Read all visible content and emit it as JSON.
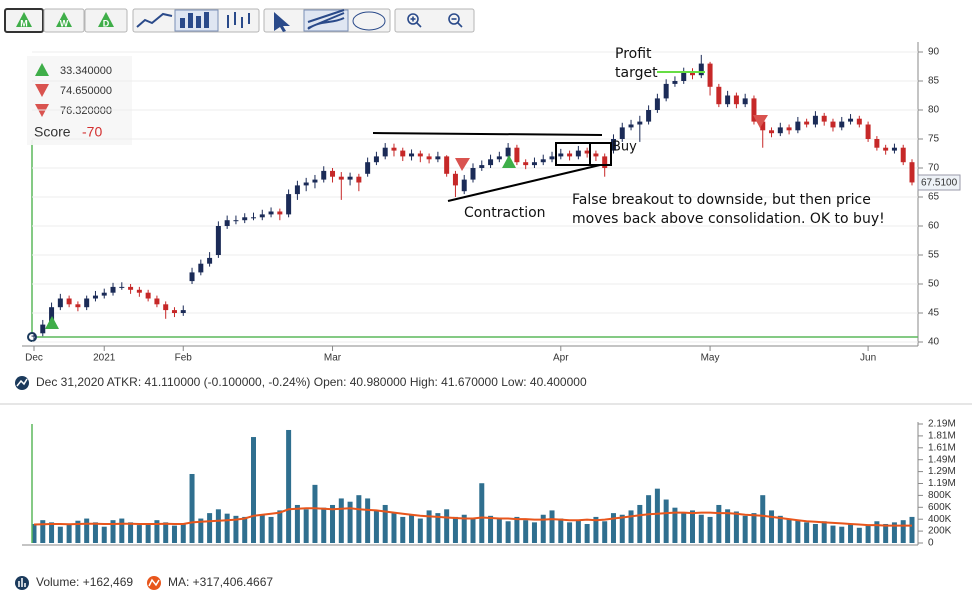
{
  "toolbar": {
    "buttons": [
      "M",
      "W",
      "D"
    ]
  },
  "info_box": {
    "values": [
      "33.340000",
      "74.650000",
      "76.320000"
    ],
    "score_label": "Score",
    "score": "-70"
  },
  "chart_data": [
    {
      "type": "candlestick",
      "ohlc_legend": "Dec 31,2020 ATKR: 41.110000 (-0.100000, -0.24%) Open: 40.980000 High: 41.670000 Low: 40.400000",
      "categories": [
        "Dec",
        null,
        null,
        null,
        null,
        null,
        null,
        null,
        "2021",
        null,
        null,
        null,
        null,
        null,
        null,
        null,
        null,
        "Feb",
        null,
        null,
        null,
        null,
        null,
        null,
        null,
        null,
        null,
        null,
        null,
        null,
        null,
        null,
        null,
        null,
        "Mar",
        null,
        null,
        null,
        null,
        null,
        null,
        null,
        null,
        null,
        null,
        null,
        null,
        null,
        null,
        null,
        null,
        null,
        null,
        null,
        null,
        null,
        null,
        null,
        null,
        null,
        "Apr",
        null,
        null,
        null,
        null,
        null,
        null,
        null,
        null,
        null,
        null,
        null,
        null,
        null,
        null,
        null,
        null,
        "May",
        null,
        null,
        null,
        null,
        null,
        null,
        null,
        null,
        null,
        null,
        null,
        null,
        null,
        null,
        null,
        null,
        null,
        "Jun",
        null,
        null,
        null,
        null,
        null
      ],
      "open": [
        40.98,
        41.5,
        43,
        46,
        47.5,
        46.5,
        46,
        47.5,
        48,
        48.5,
        49.5,
        49.5,
        49,
        48.5,
        47.5,
        46.5,
        45.5,
        45,
        50.5,
        52,
        53.5,
        55,
        60,
        61,
        61,
        61.5,
        61.5,
        62,
        62.5,
        62,
        65.5,
        67,
        67.5,
        68,
        69.5,
        68.5,
        68,
        68.5,
        69,
        71,
        72,
        73.5,
        73,
        72,
        72.5,
        72,
        71.5,
        72,
        69,
        66,
        68,
        70,
        70.5,
        71.5,
        72,
        73.5,
        71,
        70.5,
        71,
        71.5,
        72,
        72.5,
        72,
        73,
        72.5,
        72,
        73,
        75,
        77,
        77.5,
        78,
        80,
        82,
        84.5,
        85,
        86.5,
        86,
        88,
        84,
        81,
        82.5,
        81,
        82,
        78,
        76.5,
        76,
        77,
        76.5,
        78,
        77.5,
        79,
        78,
        77,
        78,
        78.5,
        77.5,
        75,
        73.5,
        73,
        73.5,
        71
      ],
      "high": [
        41.67,
        43.8,
        46.8,
        48.3,
        48,
        47,
        48,
        48.8,
        49.2,
        50.2,
        50.3,
        50,
        49.5,
        49,
        48,
        47,
        46,
        46.3,
        52.8,
        54.2,
        55.5,
        60.8,
        61.8,
        61.8,
        62.2,
        62.3,
        62.8,
        63.2,
        63,
        66.3,
        67.8,
        68.3,
        68.8,
        70.3,
        70,
        69.3,
        69.2,
        69,
        71.8,
        72.8,
        74.3,
        74.2,
        73.5,
        73.2,
        73,
        72.5,
        72.8,
        72.2,
        69.5,
        68.8,
        70.8,
        71.3,
        72.3,
        72.8,
        74.3,
        74,
        71.5,
        71.8,
        72.3,
        72.8,
        73.3,
        73,
        73.8,
        73.5,
        73,
        72.5,
        75.8,
        77.8,
        78.3,
        79,
        80.8,
        82.8,
        85.3,
        85.8,
        87.3,
        87.2,
        89.5,
        88.3,
        84.5,
        83.3,
        83,
        82.8,
        82.5,
        78.5,
        77,
        77.8,
        77.5,
        78.8,
        78.5,
        79.8,
        79.5,
        78.5,
        78.8,
        79.3,
        79,
        78,
        75.5,
        74,
        74.2,
        74,
        71.5
      ],
      "low": [
        40.4,
        41,
        42.5,
        45.5,
        46,
        45.3,
        45.5,
        47,
        47.5,
        48,
        49,
        48.3,
        47.8,
        47,
        46,
        44,
        44.3,
        44.5,
        50,
        51.5,
        53,
        54.5,
        59.5,
        60.3,
        60.5,
        61,
        61,
        61.5,
        61,
        61.5,
        64.5,
        66,
        66.5,
        67.5,
        67.5,
        64.5,
        67,
        66,
        68.5,
        70.5,
        71.5,
        72,
        71.2,
        71.3,
        71,
        70.8,
        71,
        68.5,
        65,
        65.5,
        67.5,
        69.5,
        70,
        71,
        71.5,
        70.5,
        69.8,
        70,
        70.5,
        71,
        71.5,
        71.3,
        71.5,
        71.8,
        71.2,
        68.5,
        72.5,
        74.5,
        76.5,
        74.5,
        77.5,
        79.5,
        81.5,
        84,
        84.5,
        85.3,
        85.5,
        82.5,
        80.5,
        80.5,
        80.3,
        80.5,
        77.5,
        73.5,
        75.3,
        75.5,
        75.8,
        76,
        77,
        77,
        77.3,
        76.3,
        76.5,
        77.5,
        77,
        74.5,
        73,
        72.3,
        72.5,
        70.5,
        67
      ],
      "close": [
        41.11,
        43,
        46,
        47.5,
        46.5,
        46,
        47.5,
        48,
        48.5,
        49.5,
        49.5,
        49,
        48.5,
        47.5,
        46.5,
        45.5,
        45,
        45.5,
        52,
        53.5,
        54.5,
        60,
        61,
        61,
        61.5,
        61.5,
        62,
        62.5,
        62,
        65.5,
        67,
        67.5,
        68,
        69.5,
        68.5,
        68,
        68.5,
        67.5,
        71,
        72,
        73.5,
        73,
        72,
        72.5,
        72,
        71.5,
        72,
        69,
        67,
        68,
        70,
        70.5,
        71.5,
        72,
        73.5,
        71,
        70.5,
        71,
        71.5,
        72,
        72.5,
        72,
        73,
        72.5,
        72,
        70,
        75,
        77,
        77.5,
        78,
        80,
        82,
        84.5,
        85,
        86.5,
        86,
        88,
        84,
        81,
        82.5,
        81,
        82,
        78,
        76.5,
        76,
        77,
        76.5,
        78,
        77.5,
        79,
        78,
        77,
        78,
        78.5,
        77.5,
        75,
        73.5,
        73,
        73.5,
        71,
        67.51
      ],
      "up_color": "#1b2b57",
      "down_color": "#c62828",
      "last_label": "67.5100",
      "ylim": [
        40,
        90
      ],
      "yticks": [
        40,
        45,
        50,
        55,
        60,
        65,
        70,
        75,
        80,
        85,
        90
      ],
      "grid": true,
      "annotations": [
        "Profit",
        "target",
        "Buy",
        "Contraction",
        "False breakout to downside, but then price",
        "moves back above consolidation. OK to buy!"
      ]
    },
    {
      "type": "bar",
      "ylim": [
        0,
        2190000
      ],
      "y_axis_labels": [
        "2.19M",
        "1.81M",
        "1.61M",
        "1.49M",
        "1.29M",
        "1.19M",
        "800K",
        "600K",
        "400K",
        "200K",
        "0"
      ],
      "series": [
        {
          "name": "Volume: +162,469",
          "color": "#2f6f8f",
          "values": [
            350000,
            420000,
            380000,
            300000,
            350000,
            410000,
            450000,
            380000,
            300000,
            420000,
            450000,
            380000,
            330000,
            350000,
            420000,
            380000,
            320000,
            350000,
            1270000,
            450000,
            550000,
            620000,
            540000,
            500000,
            480000,
            1950000,
            520000,
            480000,
            600000,
            2080000,
            700000,
            620000,
            1070000,
            650000,
            700000,
            820000,
            760000,
            880000,
            820000,
            600000,
            700000,
            560000,
            480000,
            520000,
            450000,
            600000,
            550000,
            620000,
            480000,
            520000,
            450000,
            1100000,
            500000,
            450000,
            400000,
            480000,
            420000,
            380000,
            520000,
            600000,
            450000,
            380000,
            420000,
            350000,
            480000,
            400000,
            550000,
            520000,
            600000,
            700000,
            880000,
            1000000,
            800000,
            650000,
            550000,
            600000,
            520000,
            480000,
            700000,
            620000,
            580000,
            500000,
            550000,
            880000,
            600000,
            500000,
            450000,
            420000,
            380000,
            350000,
            400000,
            320000,
            300000,
            350000,
            280000,
            320000,
            400000,
            350000,
            380000,
            420000,
            480000
          ]
        },
        {
          "name": "MA: +317,406.4667",
          "color": "#e8561c",
          "type": "line",
          "values": [
            340000,
            345000,
            350000,
            350000,
            345000,
            350000,
            355000,
            355000,
            350000,
            350000,
            355000,
            355000,
            350000,
            350000,
            350000,
            355000,
            350000,
            350000,
            380000,
            390000,
            400000,
            410000,
            420000,
            430000,
            450000,
            500000,
            520000,
            540000,
            560000,
            620000,
            630000,
            640000,
            640000,
            630000,
            620000,
            630000,
            640000,
            620000,
            610000,
            600000,
            580000,
            560000,
            540000,
            520000,
            500000,
            490000,
            480000,
            470000,
            460000,
            450000,
            450000,
            470000,
            460000,
            450000,
            450000,
            440000,
            440000,
            430000,
            430000,
            440000,
            430000,
            420000,
            420000,
            430000,
            420000,
            430000,
            450000,
            470000,
            490000,
            510000,
            530000,
            540000,
            550000,
            560000,
            560000,
            550000,
            560000,
            560000,
            550000,
            550000,
            540000,
            520000,
            510000,
            500000,
            480000,
            460000,
            440000,
            420000,
            400000,
            390000,
            380000,
            370000,
            360000,
            350000,
            340000,
            330000,
            330000,
            320000,
            320000,
            320000,
            320000
          ]
        }
      ]
    }
  ]
}
